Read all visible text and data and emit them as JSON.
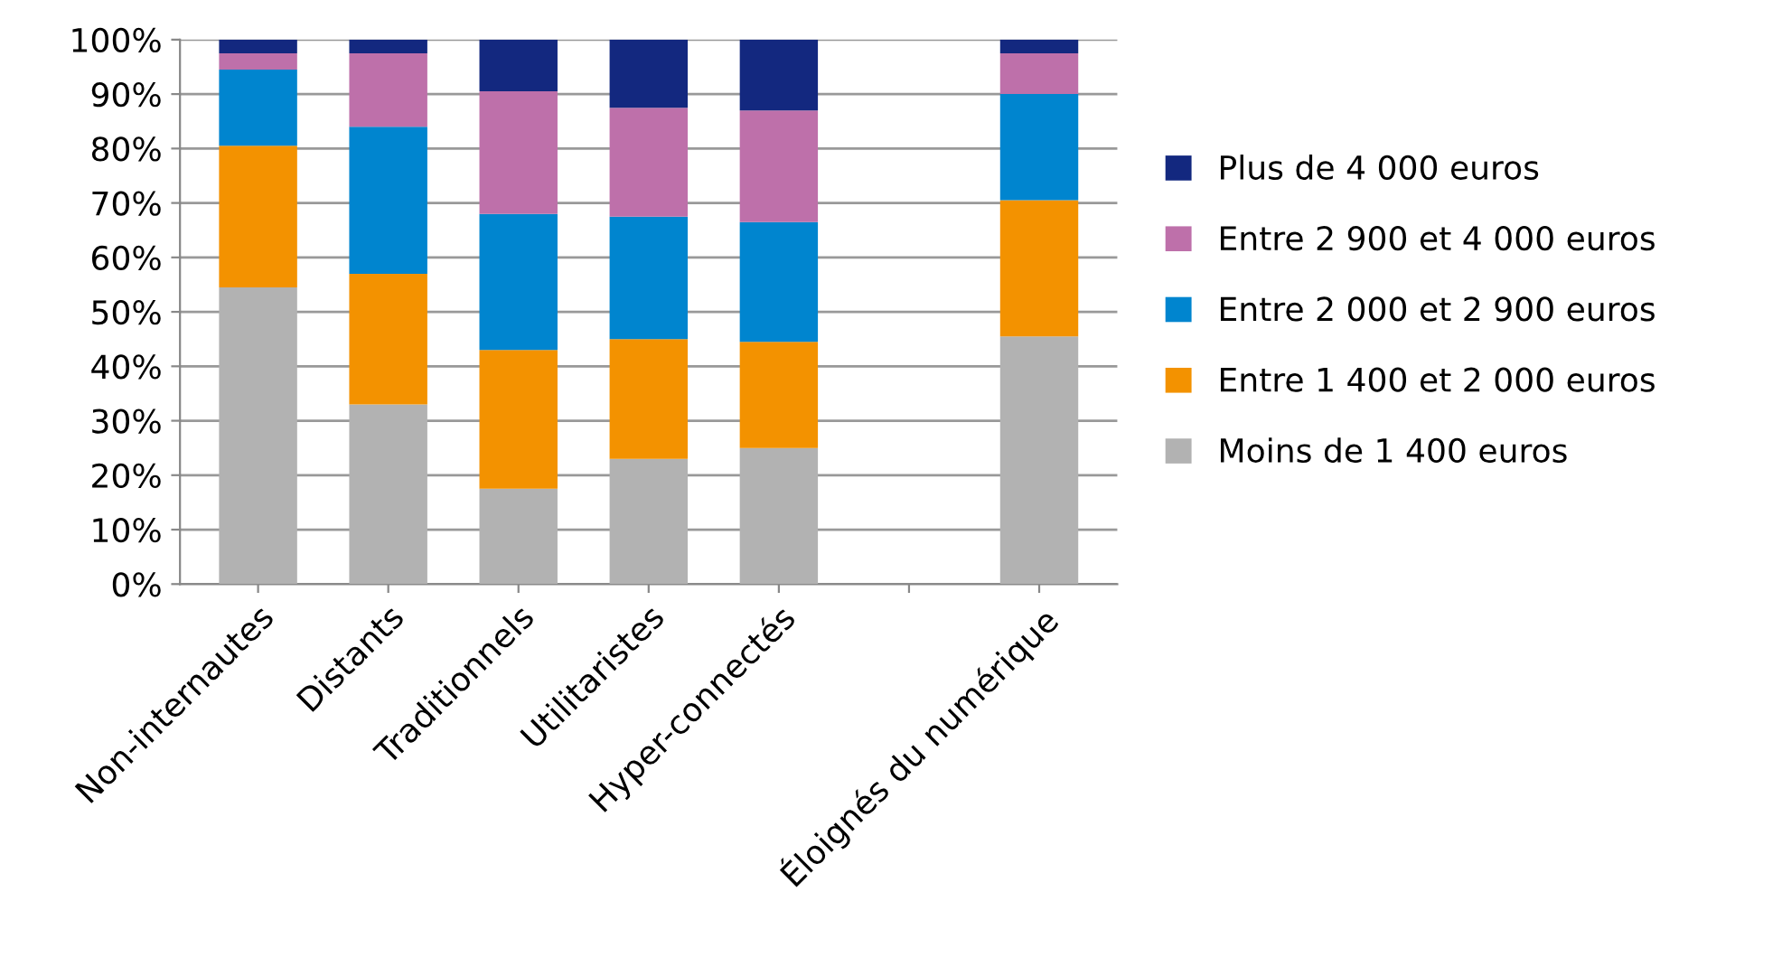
{
  "chart_data": {
    "type": "bar",
    "stacked": true,
    "categories": [
      "Non-internautes",
      "Distants",
      "Traditionnels",
      "Utilitaristes",
      "Hyper-connectés",
      null,
      "Éloignés du numérique"
    ],
    "series": [
      {
        "name": "Moins de 1 400 euros",
        "color": "#b2b2b2",
        "values": [
          54.5,
          33,
          17.5,
          23,
          25,
          null,
          45.5
        ]
      },
      {
        "name": "Entre 1 400 et 2 000 euros",
        "color": "#f39200",
        "values": [
          26,
          24,
          25.5,
          22,
          19.5,
          null,
          25
        ]
      },
      {
        "name": "Entre 2 000 et 2 900 euros",
        "color": "#0085cf",
        "values": [
          14,
          27,
          25,
          22.5,
          22,
          null,
          19.5
        ]
      },
      {
        "name": "Entre 2 900 et 4 000 euros",
        "color": "#be70aa",
        "values": [
          3,
          13.5,
          22.5,
          20,
          20.5,
          null,
          7.5
        ]
      },
      {
        "name": "Plus de 4 000 euros",
        "color": "#13287f",
        "values": [
          2.5,
          2.5,
          9.5,
          12.5,
          13,
          null,
          2.5
        ]
      }
    ],
    "ylim": [
      0,
      100
    ],
    "yticks": [
      {
        "value": 0,
        "label": "0%"
      },
      {
        "value": 10,
        "label": "10%"
      },
      {
        "value": 20,
        "label": "20%"
      },
      {
        "value": 30,
        "label": "30%"
      },
      {
        "value": 40,
        "label": "40%"
      },
      {
        "value": 50,
        "label": "50%"
      },
      {
        "value": 60,
        "label": "60%"
      },
      {
        "value": 70,
        "label": "70%"
      },
      {
        "value": 80,
        "label": "80%"
      },
      {
        "value": 90,
        "label": "90%"
      },
      {
        "value": 100,
        "label": "100%"
      }
    ],
    "grid": "y",
    "legend": "right"
  }
}
